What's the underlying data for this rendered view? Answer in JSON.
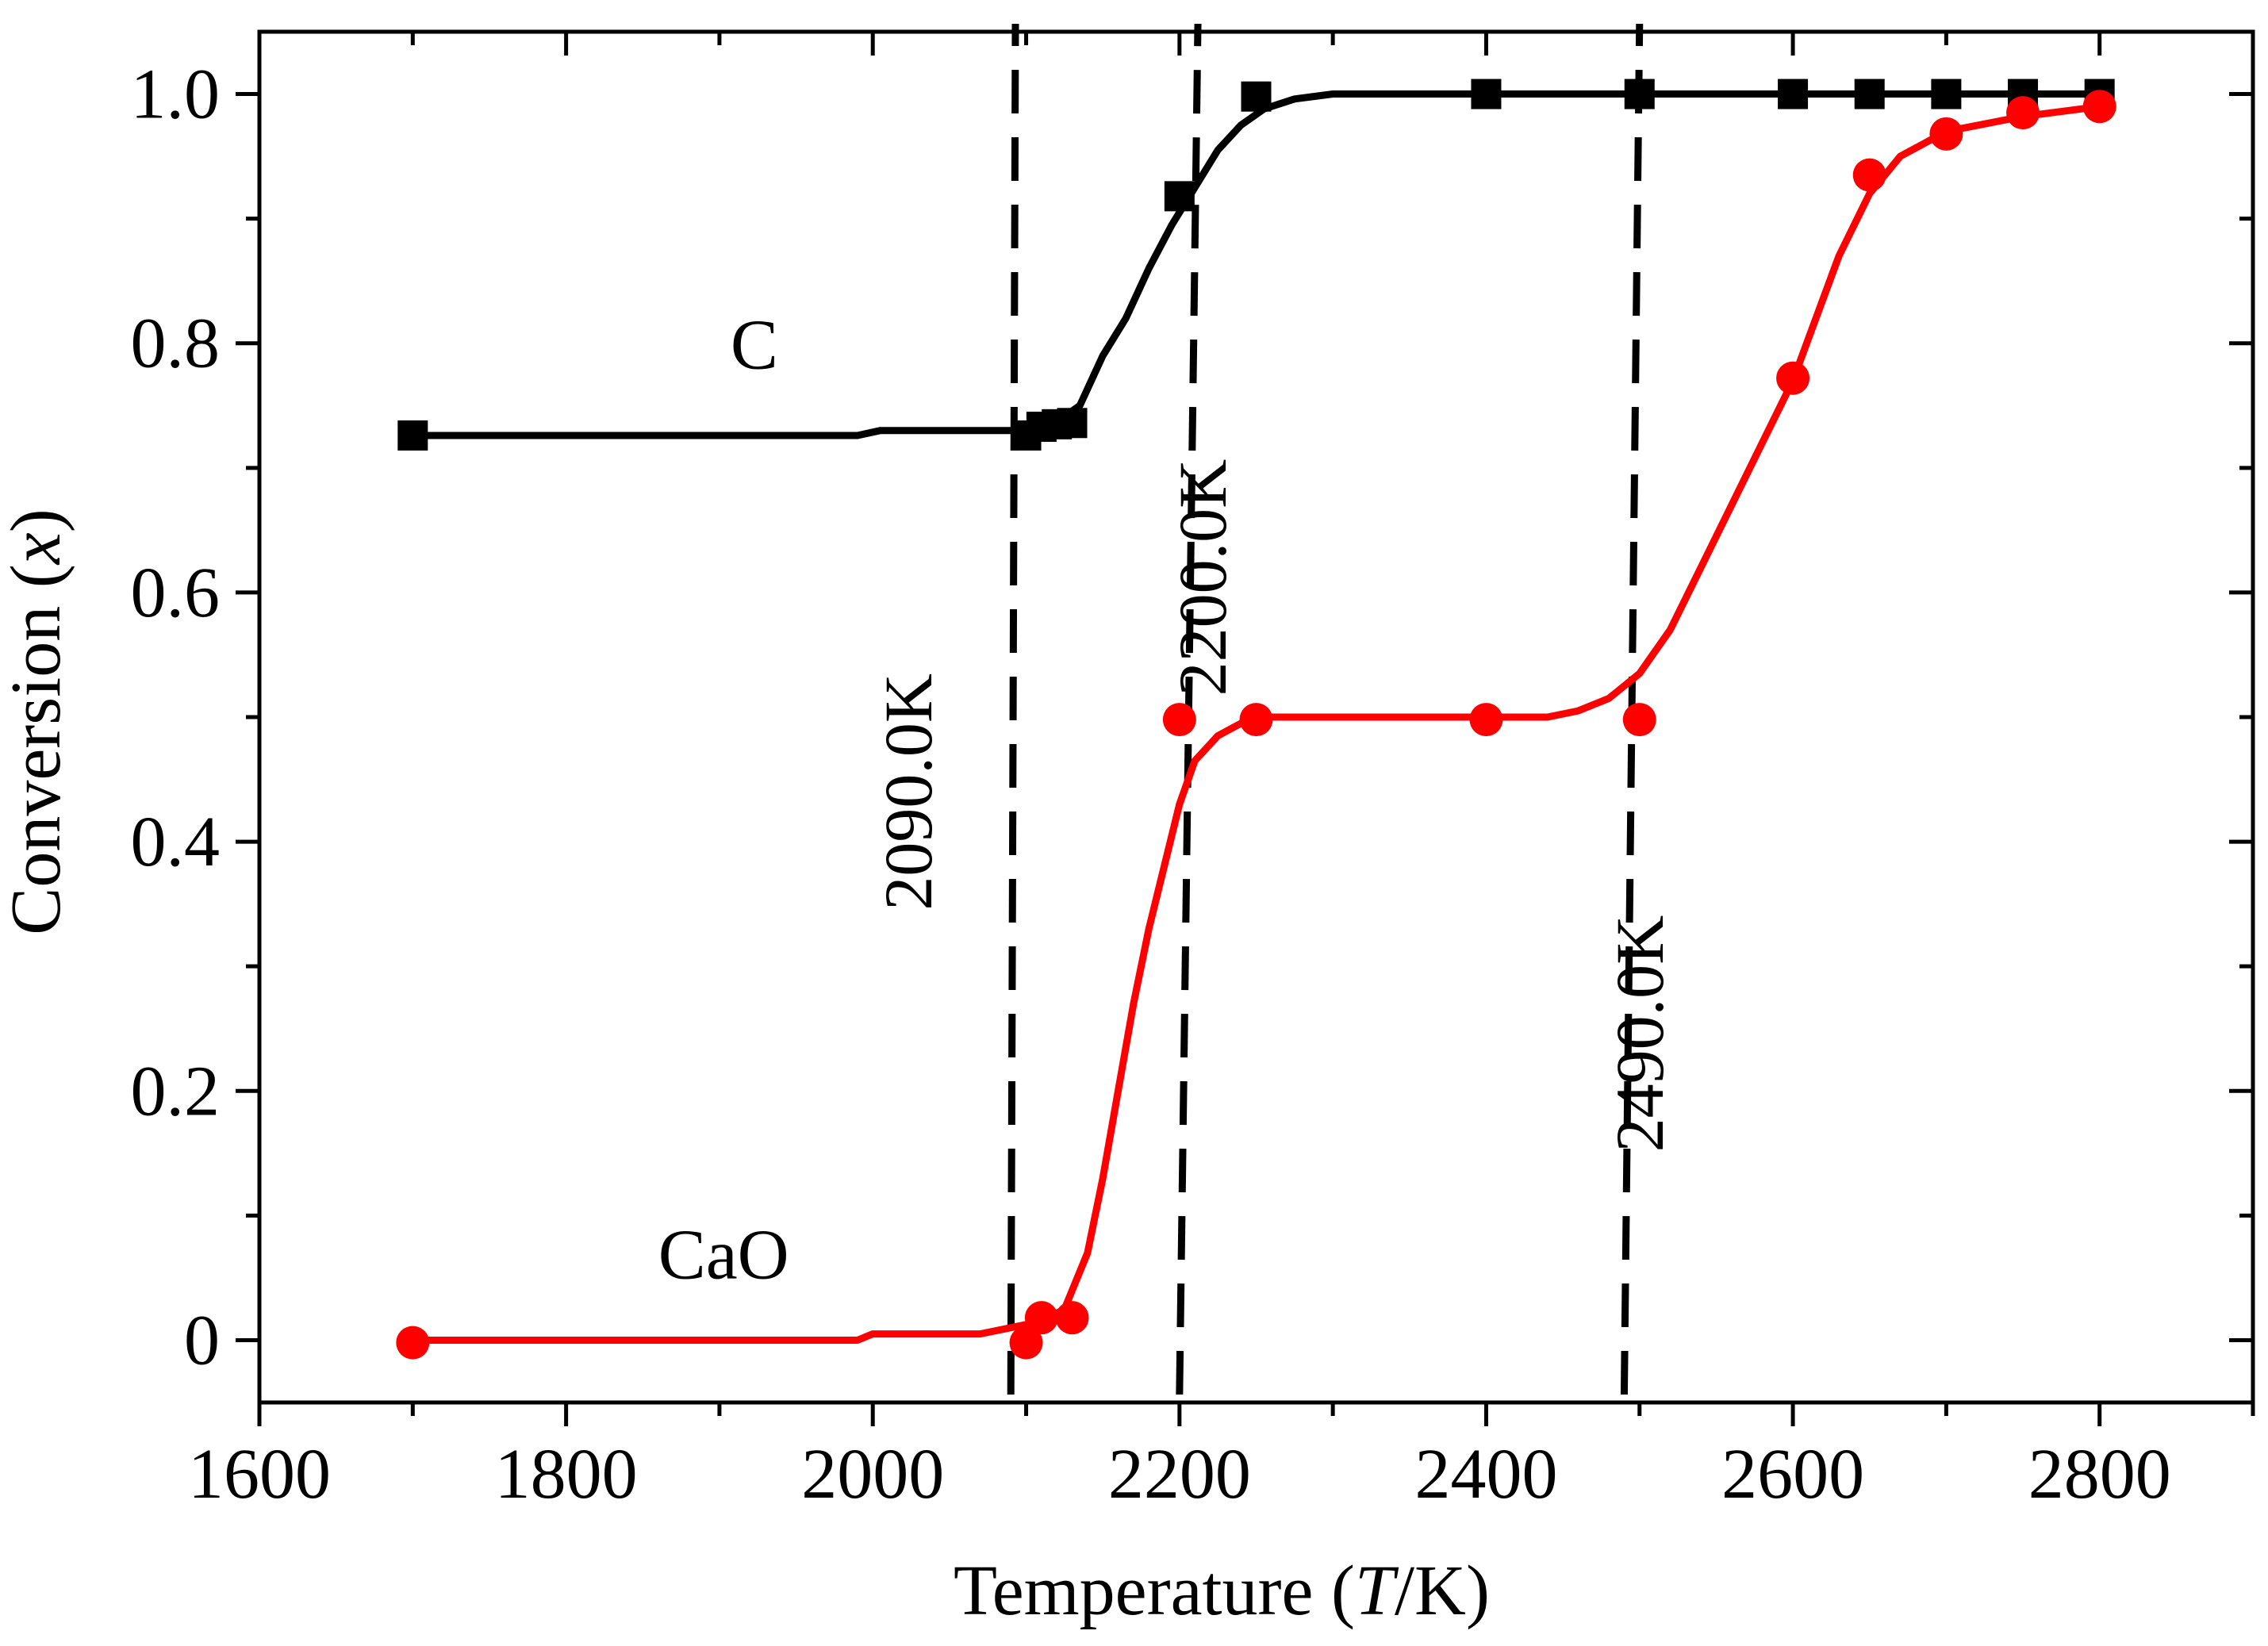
{
  "chart_data": {
    "type": "line",
    "title": "",
    "xlabel": {
      "prefix": "Temperature (",
      "italic": "T",
      "suffix": "/K)"
    },
    "ylabel": {
      "prefix": "Conversion (",
      "italic": "x",
      "suffix": ")"
    },
    "xlim": [
      1600,
      2900
    ],
    "ylim": [
      -0.05,
      1.05
    ],
    "x_ticks": [
      1600,
      1800,
      2000,
      2200,
      2400,
      2600,
      2800
    ],
    "x_tick_labels": [
      "1600",
      "1800",
      "2000",
      "2200",
      "2400",
      "2600",
      "2800"
    ],
    "y_ticks": [
      0,
      0.2,
      0.4,
      0.6,
      0.8,
      1.0
    ],
    "y_tick_labels": [
      "0",
      "0.2",
      "0.4",
      "0.6",
      "0.8",
      "1.0"
    ],
    "grid": false,
    "series": [
      {
        "name": "C",
        "color": "#000000",
        "marker": "square",
        "markers": [
          [
            1700,
            0.726
          ],
          [
            2100,
            0.726
          ],
          [
            2110,
            0.733
          ],
          [
            2120,
            0.735
          ],
          [
            2130,
            0.736
          ],
          [
            2200,
            0.918
          ],
          [
            2250,
            0.998
          ],
          [
            2400,
            1.0
          ],
          [
            2500,
            1.0
          ],
          [
            2600,
            1.0
          ],
          [
            2650,
            1.0
          ],
          [
            2700,
            1.0
          ],
          [
            2750,
            1.0
          ],
          [
            2800,
            1.0
          ]
        ],
        "curve": [
          [
            1700,
            0.726
          ],
          [
            1990,
            0.726
          ],
          [
            2005,
            0.73
          ],
          [
            2080,
            0.73
          ],
          [
            2100,
            0.73
          ],
          [
            2120,
            0.737
          ],
          [
            2135,
            0.75
          ],
          [
            2150,
            0.79
          ],
          [
            2165,
            0.82
          ],
          [
            2180,
            0.86
          ],
          [
            2195,
            0.895
          ],
          [
            2210,
            0.925
          ],
          [
            2225,
            0.955
          ],
          [
            2240,
            0.975
          ],
          [
            2255,
            0.988
          ],
          [
            2275,
            0.996
          ],
          [
            2300,
            1.0
          ],
          [
            2800,
            1.0
          ]
        ]
      },
      {
        "name": "CaO",
        "color": "#ff0000",
        "marker": "circle",
        "markers": [
          [
            1700,
            -0.002
          ],
          [
            2100,
            -0.002
          ],
          [
            2110,
            0.018
          ],
          [
            2130,
            0.018
          ],
          [
            2200,
            0.498
          ],
          [
            2250,
            0.498
          ],
          [
            2400,
            0.498
          ],
          [
            2500,
            0.498
          ],
          [
            2600,
            0.772
          ],
          [
            2650,
            0.935
          ],
          [
            2700,
            0.968
          ],
          [
            2750,
            0.985
          ],
          [
            2800,
            0.99
          ]
        ],
        "curve": [
          [
            1700,
            0.0
          ],
          [
            1990,
            0.0
          ],
          [
            2000,
            0.005
          ],
          [
            2070,
            0.005
          ],
          [
            2090,
            0.01
          ],
          [
            2110,
            0.015
          ],
          [
            2125,
            0.025
          ],
          [
            2140,
            0.07
          ],
          [
            2150,
            0.13
          ],
          [
            2160,
            0.2
          ],
          [
            2170,
            0.27
          ],
          [
            2180,
            0.33
          ],
          [
            2190,
            0.38
          ],
          [
            2200,
            0.43
          ],
          [
            2210,
            0.465
          ],
          [
            2225,
            0.485
          ],
          [
            2240,
            0.495
          ],
          [
            2260,
            0.5
          ],
          [
            2440,
            0.5
          ],
          [
            2460,
            0.505
          ],
          [
            2480,
            0.515
          ],
          [
            2500,
            0.535
          ],
          [
            2520,
            0.57
          ],
          [
            2540,
            0.62
          ],
          [
            2560,
            0.67
          ],
          [
            2580,
            0.72
          ],
          [
            2600,
            0.77
          ],
          [
            2615,
            0.82
          ],
          [
            2630,
            0.87
          ],
          [
            2650,
            0.92
          ],
          [
            2670,
            0.95
          ],
          [
            2700,
            0.97
          ],
          [
            2750,
            0.982
          ],
          [
            2800,
            0.99
          ]
        ]
      }
    ],
    "annotations": [
      {
        "text": "C",
        "x": 2140,
        "y": 0.8
      },
      {
        "text": "CaO",
        "x": 2120,
        "y": 0.07
      }
    ],
    "reference_lines": [
      {
        "label": "2090.0K",
        "x_bottom": 2090,
        "x_top": 2093,
        "y_top": 1.05,
        "label_x": 2095,
        "label_y": 0.44,
        "label_rotation": -90,
        "label_side": "left"
      },
      {
        "label": "2200.0K",
        "x_bottom": 2200,
        "x_top": 2205,
        "y_top": 1.05,
        "tilt_top_x": 2212,
        "label_x": 2230,
        "label_y": 0.612,
        "label_rotation": -90,
        "label_side": "right"
      },
      {
        "label": "2490.0K",
        "x_bottom": 2490,
        "x_top": 2495,
        "y_top": 1.05,
        "tilt_top_x": 2500,
        "label_x": 2515,
        "label_y": 0.246,
        "label_rotation": -90,
        "label_side": "right"
      }
    ]
  }
}
